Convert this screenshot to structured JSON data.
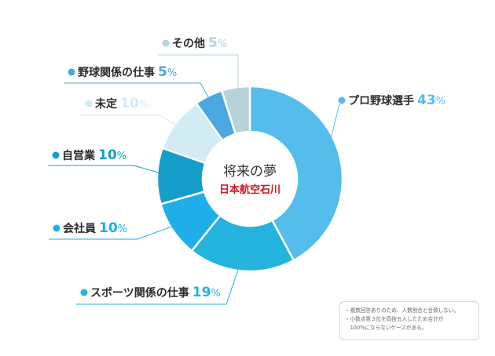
{
  "chart_data": {
    "type": "pie",
    "title": "将来の夢",
    "subtitle": "日本航空石川",
    "unit": "%",
    "slices": [
      {
        "label": "プロ野球選手",
        "value": 43,
        "color": "#55bdec"
      },
      {
        "label": "スポーツ関係の仕事",
        "value": 19,
        "color": "#24b4dd"
      },
      {
        "label": "会社員",
        "value": 10,
        "color": "#1faeea"
      },
      {
        "label": "自営業",
        "value": 10,
        "color": "#159ec9"
      },
      {
        "label": "未定",
        "value": 10,
        "color": "#d3ecf4"
      },
      {
        "label": "野球関係の仕事",
        "value": 5,
        "color": "#4aa8e0"
      },
      {
        "label": "その他",
        "value": 5,
        "color": "#b6d3db"
      }
    ]
  },
  "notes": [
    "・複数回答ありのため、人数割合と合致しない。",
    "・小数点第３位を四捨五入したため合計が",
    "　100%にならないケースがある。"
  ]
}
